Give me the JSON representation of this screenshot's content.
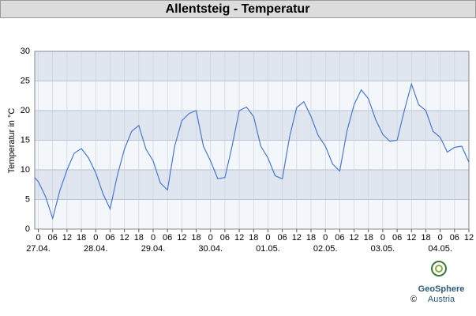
{
  "chart_data": {
    "type": "line",
    "title": "Allentsteig - Temperatur",
    "y_label": "Temperatur in °C",
    "x": [
      -1.5,
      0,
      3,
      6,
      9,
      12,
      15,
      18,
      21,
      24,
      27,
      30,
      33,
      36,
      39,
      42,
      45,
      48,
      51,
      54,
      57,
      60,
      63,
      66,
      69,
      72,
      75,
      78,
      81,
      84,
      87,
      90,
      93,
      96,
      99,
      102,
      105,
      108,
      111,
      114,
      117,
      120,
      123,
      126,
      129,
      132,
      135,
      138,
      141,
      144,
      147,
      150,
      153,
      156,
      159,
      162,
      165,
      168,
      171,
      174,
      177,
      180
    ],
    "series": [
      {
        "name": "Temperatur",
        "color": "#4a78d0",
        "values": [
          8.7,
          8,
          5.5,
          1.8,
          6.5,
          10,
          12.8,
          13.6,
          12,
          9.5,
          6,
          3.4,
          9,
          13.5,
          16.5,
          17.5,
          13.5,
          11.5,
          7.8,
          6.6,
          14,
          18.3,
          19.5,
          20,
          14,
          11.5,
          8.5,
          8.7,
          14,
          20,
          20.6,
          19,
          14,
          12,
          9,
          8.5,
          15.5,
          20.5,
          21.5,
          19,
          15.8,
          14,
          11,
          9.8,
          16.5,
          21,
          23.5,
          22,
          18.5,
          16,
          14.8,
          15,
          20,
          24.5,
          21,
          20,
          16.5,
          15.5,
          13,
          13.8,
          14,
          11.3
        ]
      }
    ],
    "xlim": [
      -1.5,
      180
    ],
    "ylim": [
      0,
      30
    ],
    "yticks": [
      0,
      5,
      10,
      15,
      20,
      25,
      30
    ],
    "xticks": [
      {
        "value": 0,
        "label": "0"
      },
      {
        "value": 6,
        "label": "06"
      },
      {
        "value": 12,
        "label": "12"
      },
      {
        "value": 18,
        "label": "18"
      },
      {
        "value": 24,
        "label": "0"
      },
      {
        "value": 30,
        "label": "06"
      },
      {
        "value": 36,
        "label": "12"
      },
      {
        "value": 42,
        "label": "18"
      },
      {
        "value": 48,
        "label": "0"
      },
      {
        "value": 54,
        "label": "06"
      },
      {
        "value": 60,
        "label": "12"
      },
      {
        "value": 66,
        "label": "18"
      },
      {
        "value": 72,
        "label": "0"
      },
      {
        "value": 78,
        "label": "06"
      },
      {
        "value": 84,
        "label": "12"
      },
      {
        "value": 90,
        "label": "18"
      },
      {
        "value": 96,
        "label": "0"
      },
      {
        "value": 102,
        "label": "06"
      },
      {
        "value": 108,
        "label": "12"
      },
      {
        "value": 114,
        "label": "18"
      },
      {
        "value": 120,
        "label": "0"
      },
      {
        "value": 126,
        "label": "06"
      },
      {
        "value": 132,
        "label": "12"
      },
      {
        "value": 138,
        "label": "18"
      },
      {
        "value": 144,
        "label": "0"
      },
      {
        "value": 150,
        "label": "06"
      },
      {
        "value": 156,
        "label": "12"
      },
      {
        "value": 162,
        "label": "18"
      },
      {
        "value": 168,
        "label": "0"
      },
      {
        "value": 174,
        "label": "06"
      },
      {
        "value": 180,
        "label": "12"
      }
    ],
    "date_ticks": [
      {
        "value": 0,
        "label": "27.04."
      },
      {
        "value": 24,
        "label": "28.04."
      },
      {
        "value": 48,
        "label": "29.04."
      },
      {
        "value": 72,
        "label": "30.04."
      },
      {
        "value": 96,
        "label": "01.05."
      },
      {
        "value": 120,
        "label": "02.05."
      },
      {
        "value": 144,
        "label": "03.05."
      },
      {
        "value": 168,
        "label": "04.05."
      }
    ],
    "grid": true
  },
  "logo": {
    "name": "GeoSphere",
    "country": "Austria",
    "copyright": "©"
  }
}
